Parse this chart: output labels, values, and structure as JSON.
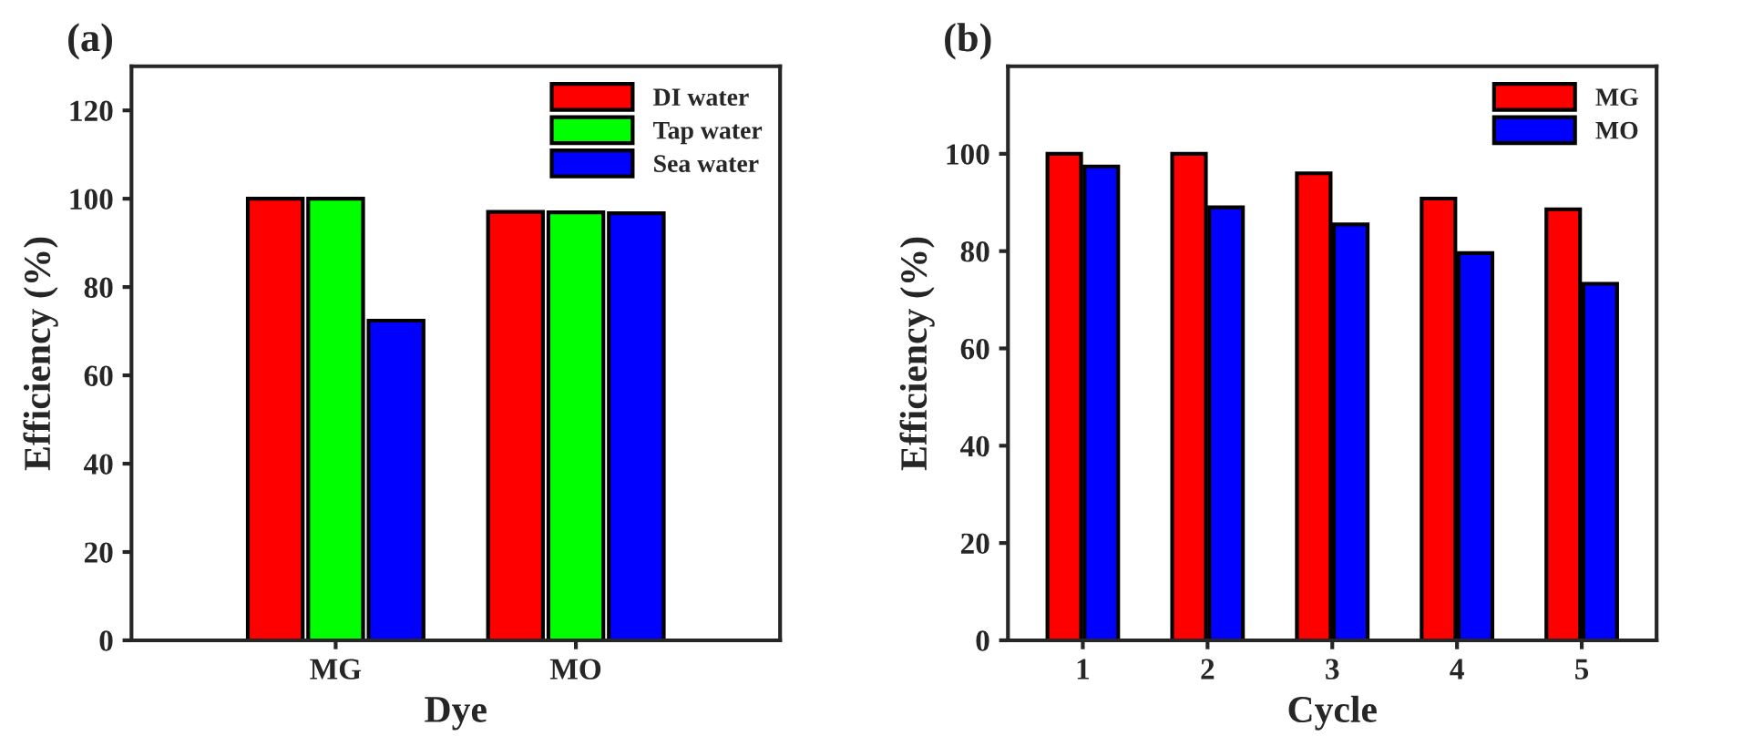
{
  "chart_data": [
    {
      "type": "bar",
      "title": "(a)",
      "xlabel": "Dye",
      "ylabel": "Efficiency (%)",
      "categories": [
        "MG",
        "MO"
      ],
      "series": [
        {
          "name": "DI water",
          "color": "#ff0000",
          "values": [
            100,
            97
          ]
        },
        {
          "name": "Tap water",
          "color": "#00ff00",
          "values": [
            100,
            96.9
          ]
        },
        {
          "name": "Sea water",
          "color": "#0000ff",
          "values": [
            72.4,
            96.7
          ]
        }
      ],
      "ylim": [
        0,
        130
      ],
      "yticks": [
        0,
        20,
        40,
        60,
        80,
        100,
        120
      ],
      "legend": "top right",
      "grid": false
    },
    {
      "type": "bar",
      "title": "(b)",
      "xlabel": "Cycle",
      "ylabel": "Efficiency (%)",
      "categories": [
        "1",
        "2",
        "3",
        "4",
        "5"
      ],
      "series": [
        {
          "name": "MG",
          "color": "#ff0000",
          "values": [
            100,
            100,
            96,
            90.8,
            88.6
          ]
        },
        {
          "name": "MO",
          "color": "#0000ff",
          "values": [
            97.4,
            89,
            85.5,
            79.6,
            73.3
          ]
        }
      ],
      "ylim": [
        0,
        118
      ],
      "yticks": [
        0,
        20,
        40,
        60,
        80,
        100
      ],
      "legend": "top right",
      "grid": false
    }
  ]
}
